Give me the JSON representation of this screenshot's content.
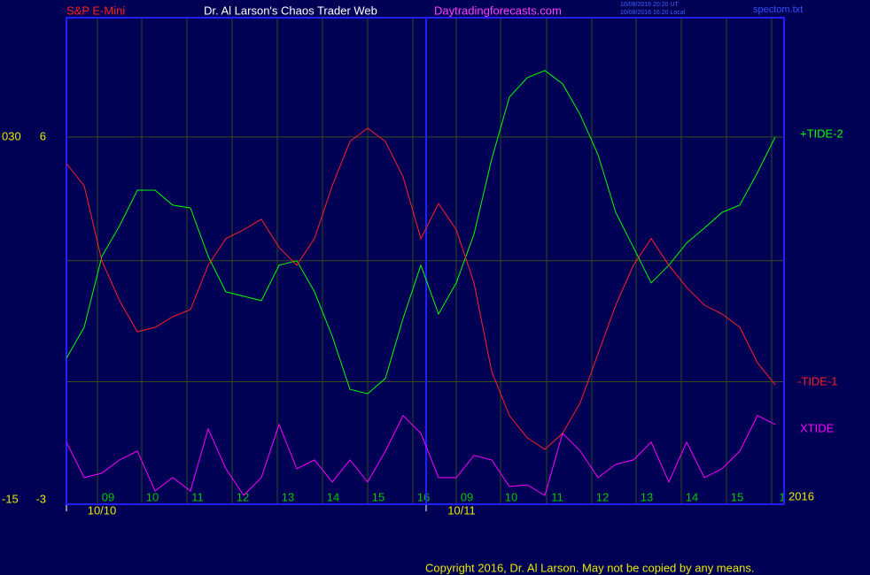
{
  "header": {
    "symbol": "S&P E-Mini",
    "site_title": "Dr. Al Larson's Chaos Trader Web",
    "url": "Daytradingforecasts.com",
    "time_ut": "10/08/2016 20:20 UT",
    "time_local": "10/08/2016 16:20 Local",
    "file": "spectom.txt"
  },
  "footer": {
    "copyright": "Copyright 2016, Dr. Al Larson. May not be copied by any means.",
    "year": "2016"
  },
  "chart_data": {
    "type": "line",
    "x": [
      0,
      1,
      2,
      3,
      4,
      5,
      6,
      7,
      8,
      9,
      10,
      11,
      12,
      13,
      14,
      15,
      16,
      17,
      18,
      19,
      20,
      21,
      22,
      23,
      24,
      25,
      26,
      27,
      28,
      29,
      30,
      31,
      32,
      33,
      34,
      35,
      36,
      37,
      38,
      39,
      40
    ],
    "xlim": [
      0,
      40.5
    ],
    "xticks": [
      {
        "value": 1.75,
        "label": "09"
      },
      {
        "value": 4.25,
        "label": "10"
      },
      {
        "value": 6.8,
        "label": "11"
      },
      {
        "value": 9.35,
        "label": "12"
      },
      {
        "value": 11.9,
        "label": "13"
      },
      {
        "value": 14.45,
        "label": "14"
      },
      {
        "value": 17,
        "label": "15"
      },
      {
        "value": 19.55,
        "label": "16"
      },
      {
        "value": 22,
        "label": "09"
      },
      {
        "value": 24.5,
        "label": "10"
      },
      {
        "value": 27.1,
        "label": "11"
      },
      {
        "value": 29.65,
        "label": "12"
      },
      {
        "value": 32.15,
        "label": "13"
      },
      {
        "value": 34.7,
        "label": "14"
      },
      {
        "value": 37.25,
        "label": "15"
      },
      {
        "value": 39.8,
        "label": "1"
      }
    ],
    "date_ticks": [
      {
        "value": 0,
        "label": "10/10"
      },
      {
        "value": 20.3,
        "label": "10/11"
      }
    ],
    "ylim": [
      -3.11,
      8.96
    ],
    "yticks": [
      -3,
      6
    ],
    "ygrid": [
      6,
      2.93,
      -0.07
    ],
    "y2lim": [
      -15.55,
      44.8
    ],
    "y2ticks": [
      {
        "value": 30,
        "label": "030"
      },
      -15
    ],
    "grid": true,
    "series": [
      {
        "name": "+TIDE-2",
        "color": "#00ff00",
        "values": [
          0.51,
          1.28,
          3.04,
          3.8,
          4.68,
          4.68,
          4.31,
          4.24,
          3.04,
          2.16,
          2.05,
          1.94,
          2.82,
          2.93,
          2.16,
          1.06,
          -0.26,
          -0.37,
          0.01,
          1.5,
          2.82,
          1.61,
          2.38,
          3.59,
          5.45,
          6.99,
          7.47,
          7.65,
          7.32,
          6.55,
          5.56,
          4.13,
          3.26,
          2.38,
          2.82,
          3.37,
          3.74,
          4.13,
          4.31,
          5.12,
          6.0
        ]
      },
      {
        "name": "-TIDE-1",
        "color": "#ff2020",
        "values": [
          5.34,
          4.79,
          2.93,
          1.94,
          1.17,
          1.28,
          1.54,
          1.72,
          2.82,
          3.48,
          3.7,
          3.96,
          3.26,
          2.82,
          3.48,
          4.79,
          5.89,
          6.22,
          5.89,
          5.01,
          3.48,
          4.35,
          3.7,
          2.38,
          0.18,
          -0.91,
          -1.46,
          -1.75,
          -1.35,
          -0.59,
          0.62,
          1.83,
          2.82,
          3.48,
          2.82,
          2.27,
          1.83,
          1.61,
          1.28,
          0.4,
          -0.15
        ]
      },
      {
        "name": "XTIDE",
        "color": "#ff00ff",
        "values": [
          -1.57,
          -2.45,
          -2.34,
          -2.01,
          -1.79,
          -2.78,
          -2.45,
          -2.78,
          -1.24,
          -2.23,
          -2.89,
          -2.45,
          -1.13,
          -2.23,
          -2.01,
          -2.56,
          -2.01,
          -2.56,
          -1.79,
          -0.91,
          -1.35,
          -2.45,
          -2.45,
          -1.9,
          -2.01,
          -2.67,
          -2.63,
          -2.89,
          -1.35,
          -1.79,
          -2.45,
          -2.12,
          -2.01,
          -1.57,
          -2.56,
          -1.57,
          -2.45,
          -2.23,
          -1.79,
          -0.91,
          -1.13
        ]
      }
    ]
  }
}
